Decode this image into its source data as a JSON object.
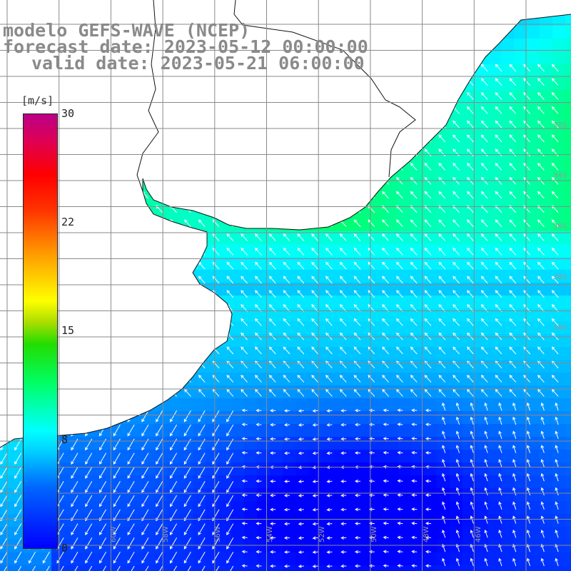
{
  "header": {
    "model": "modelo GEFS-WAVE (NCEP)",
    "forecast": "forecast date: 2023-05-12 00:00:00",
    "valid": "valid date: 2023-05-21 06:00:00"
  },
  "colorbar": {
    "unit": "[m/s]",
    "min": 0,
    "max": 30,
    "ticks": [
      "30",
      "22",
      "15",
      "8",
      "0"
    ],
    "tick_values": [
      30,
      22,
      15,
      8,
      0
    ]
  },
  "map": {
    "lon_range": [
      -66,
      -44
    ],
    "lat_range": [
      -42,
      -26
    ],
    "grid_step_deg": 2,
    "lon_labels": [
      "60W",
      "58W",
      "56W",
      "54W",
      "52W",
      "50W",
      "48W",
      "46W"
    ],
    "lat_labels": [
      "32S",
      "34S",
      "36S",
      "38S",
      "40S"
    ],
    "colors": {
      "land": "#ffffff",
      "coast": "#111111",
      "grid": "#8a8a8a",
      "arrow": "#ffffff"
    }
  }
}
